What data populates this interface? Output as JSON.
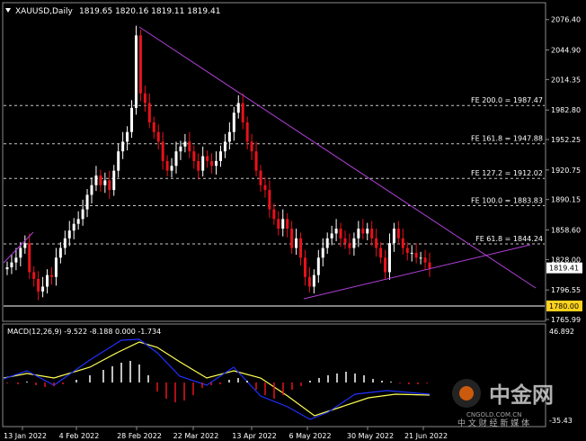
{
  "header": {
    "symbol": "XAUUSD,Daily",
    "ohlc": "1819.65 1820.16 1819.11 1819.41"
  },
  "chart_data": [
    {
      "type": "candlestick",
      "title": "XAUUSD,Daily",
      "ylim": [
        1765.99,
        2092
      ],
      "price_labels": [
        "2076.40",
        "2044.90",
        "2014.35",
        "1982.80",
        "1952.25",
        "1920.75",
        "1890.15",
        "1858.60",
        "1828.00",
        "1796.55",
        "1765.99"
      ],
      "date_labels": [
        "13 Jan 2022",
        "4 Feb 2022",
        "28 Feb 2022",
        "22 Mar 2022",
        "13 Apr 2022",
        "6 May 2022",
        "30 May 2022",
        "21 Jun 2022"
      ],
      "current_price": "1819.41",
      "support_level": {
        "label": "1780.00",
        "value": 1780.0
      },
      "fib_levels": [
        {
          "label": "FE 200.0 = 1987.47",
          "value": 1987.47
        },
        {
          "label": "FE 161.8 = 1947.88",
          "value": 1947.88
        },
        {
          "label": "FE 127.2 = 1912.02",
          "value": 1912.02
        },
        {
          "label": "FE 100.0 = 1883.83",
          "value": 1883.83
        },
        {
          "label": "FE 61.8 = 1844.24",
          "value": 1844.24
        }
      ],
      "colors": {
        "bull": "#ffffff",
        "bear": "#e8121c",
        "trendline": "#b040d8",
        "fib": "#c8c8c8"
      },
      "closes": [
        1820,
        1825,
        1830,
        1840,
        1845,
        1815,
        1808,
        1795,
        1800,
        1812,
        1810,
        1830,
        1840,
        1850,
        1858,
        1865,
        1870,
        1880,
        1895,
        1905,
        1915,
        1905,
        1910,
        1900,
        1920,
        1940,
        1950,
        1960,
        1985,
        2060,
        2000,
        1990,
        1970,
        1960,
        1950,
        1930,
        1920,
        1925,
        1940,
        1945,
        1950,
        1940,
        1930,
        1920,
        1935,
        1930,
        1925,
        1930,
        1940,
        1950,
        1960,
        1980,
        1990,
        1970,
        1950,
        1940,
        1920,
        1905,
        1900,
        1880,
        1870,
        1860,
        1870,
        1860,
        1840,
        1850,
        1830,
        1810,
        1800,
        1812,
        1830,
        1840,
        1850,
        1855,
        1860,
        1850,
        1845,
        1840,
        1850,
        1860,
        1855,
        1860,
        1850,
        1840,
        1830,
        1815,
        1845,
        1860,
        1850,
        1840,
        1835,
        1835,
        1830,
        1830,
        1825,
        1819
      ]
    },
    {
      "type": "macd",
      "label": "MACD(12,26,9) -9.522 -8.188 0.000 -1.734",
      "ylim": [
        -35.43,
        46.892
      ],
      "scale_top": "46.892",
      "scale_bottom": "-35.43",
      "colors": {
        "signal": "#ffff55",
        "macd": "#2030ff",
        "hist_pos": "#ffffff",
        "hist_neg": "#e8121c"
      }
    }
  ],
  "watermark": {
    "brand": "中金网",
    "domain": "CNGOLD.COM.CN",
    "tagline": "中 文 财 经 新 媒 体"
  }
}
